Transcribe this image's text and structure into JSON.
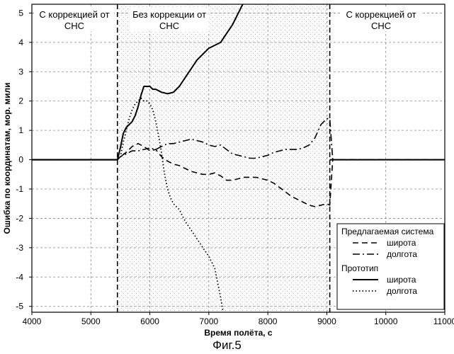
{
  "chart_data": {
    "type": "line",
    "xlabel": "Время полёта, с",
    "ylabel": "Ошибка по координатам, мор. мили",
    "xlim": [
      4000,
      11000
    ],
    "ylim": [
      -5.2,
      5.3
    ],
    "xticks": [
      4000,
      5000,
      6000,
      7000,
      8000,
      9000,
      10000,
      11000
    ],
    "yticks": [
      -5,
      -4,
      -3,
      -2,
      -1,
      0,
      1,
      2,
      3,
      4,
      5
    ],
    "grid": true,
    "correction_off_range": [
      5450,
      9050
    ],
    "regions": [
      {
        "label_lines": [
          "С коррекцией от",
          "СНС"
        ],
        "x_center": 4720
      },
      {
        "label_lines": [
          "Без коррекции от",
          "СНС"
        ],
        "x_center": 6330
      },
      {
        "label_lines": [
          "С коррекцией от",
          "СНС"
        ],
        "x_center": 9920
      }
    ],
    "legend": {
      "position": "bottom-right",
      "groups": [
        {
          "title": "Предлагаемая система",
          "entries": [
            {
              "label": "широта",
              "series": 0
            },
            {
              "label": "долгота",
              "series": 1
            }
          ]
        },
        {
          "title": "Прототип",
          "entries": [
            {
              "label": "широта",
              "series": 2
            },
            {
              "label": "долгота",
              "series": 3
            }
          ]
        }
      ]
    },
    "series": [
      {
        "group": "Предлагаемая система",
        "name": "широта",
        "dash": "dashed",
        "x": [
          4000,
          5450,
          5500,
          5600,
          5700,
          5800,
          5900,
          6000,
          6100,
          6200,
          6300,
          6400,
          6500,
          6600,
          6700,
          6800,
          6900,
          7000,
          7100,
          7200,
          7300,
          7400,
          7500,
          7600,
          7700,
          7800,
          7900,
          8000,
          8100,
          8200,
          8300,
          8400,
          8500,
          8600,
          8700,
          8800,
          8900,
          9000,
          9050,
          9100,
          11000
        ],
        "y": [
          0,
          0,
          0.1,
          0.25,
          0.45,
          0.55,
          0.45,
          0.3,
          0.35,
          0.1,
          -0.05,
          -0.15,
          -0.2,
          -0.3,
          -0.4,
          -0.45,
          -0.5,
          -0.5,
          -0.45,
          -0.55,
          -0.7,
          -0.7,
          -0.65,
          -0.6,
          -0.6,
          -0.6,
          -0.65,
          -0.7,
          -0.8,
          -0.95,
          -1.1,
          -1.25,
          -1.35,
          -1.45,
          -1.55,
          -1.6,
          -1.55,
          -1.5,
          -1.55,
          0,
          0
        ]
      },
      {
        "group": "Предлагаемая система",
        "name": "долгота",
        "dash": "dashdot",
        "x": [
          4000,
          5450,
          5500,
          5600,
          5700,
          5800,
          5900,
          6000,
          6100,
          6200,
          6300,
          6400,
          6500,
          6600,
          6700,
          6800,
          6900,
          7000,
          7100,
          7200,
          7300,
          7400,
          7500,
          7600,
          7700,
          7800,
          7900,
          8000,
          8100,
          8200,
          8300,
          8400,
          8500,
          8600,
          8700,
          8800,
          8900,
          9000,
          9050,
          9100,
          11000
        ],
        "y": [
          0,
          0,
          0.1,
          0.2,
          0.3,
          0.3,
          0.35,
          0.4,
          0.35,
          0.45,
          0.55,
          0.55,
          0.6,
          0.65,
          0.7,
          0.65,
          0.6,
          0.5,
          0.45,
          0.5,
          0.35,
          0.2,
          0.15,
          0.1,
          0.05,
          0.05,
          0.1,
          0.15,
          0.25,
          0.3,
          0.35,
          0.35,
          0.35,
          0.4,
          0.5,
          0.75,
          1.2,
          1.4,
          1.4,
          0,
          0
        ]
      },
      {
        "group": "Прототип",
        "name": "широта",
        "dash": "solid",
        "x": [
          4000,
          5450,
          5500,
          5550,
          5600,
          5650,
          5700,
          5750,
          5800,
          5850,
          5900,
          5950,
          6000,
          6050,
          6100,
          6200,
          6300,
          6400,
          6500,
          6600,
          6700,
          6800,
          6900,
          7000,
          7100,
          7200,
          7300,
          7400,
          7500,
          7600,
          7650
        ],
        "y": [
          0,
          0,
          0.4,
          0.9,
          1.1,
          1.2,
          1.3,
          1.5,
          1.8,
          2.2,
          2.5,
          2.5,
          2.5,
          2.4,
          2.4,
          2.3,
          2.25,
          2.3,
          2.5,
          2.8,
          3.1,
          3.4,
          3.6,
          3.8,
          3.9,
          4.0,
          4.3,
          4.6,
          5.0,
          5.4,
          5.6
        ]
      },
      {
        "group": "Прототип",
        "name": "долгота",
        "dash": "dotted",
        "x": [
          4000,
          5450,
          5500,
          5550,
          5600,
          5650,
          5700,
          5750,
          5800,
          5850,
          5900,
          5950,
          6000,
          6050,
          6100,
          6150,
          6200,
          6250,
          6300,
          6350,
          6400,
          6450,
          6500,
          6600,
          6700,
          6800,
          6900,
          7000,
          7100,
          7150,
          7200,
          7250
        ],
        "y": [
          0,
          0,
          0.1,
          0.6,
          1.0,
          1.4,
          1.7,
          1.9,
          2.0,
          2.1,
          2.0,
          2.0,
          1.9,
          1.7,
          1.3,
          0.8,
          0.2,
          -0.5,
          -1.0,
          -1.3,
          -1.5,
          -1.6,
          -1.7,
          -2.1,
          -2.4,
          -2.7,
          -3.0,
          -3.3,
          -3.7,
          -4.2,
          -4.7,
          -5.3
        ]
      }
    ]
  },
  "caption": "Фиг.5"
}
